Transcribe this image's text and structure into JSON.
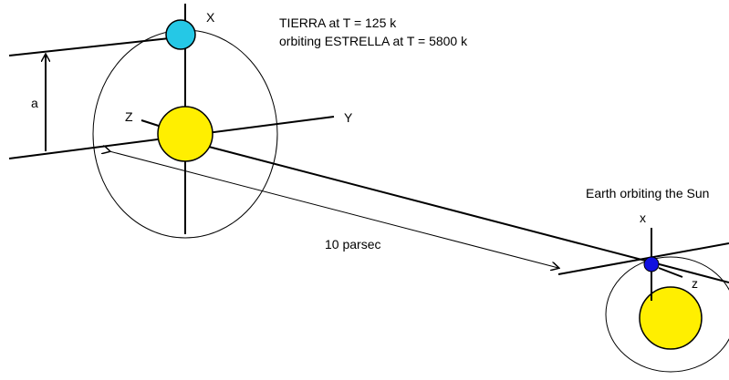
{
  "labels": {
    "x_axis": "X",
    "title_line1": "TIERRA at T = 125 k",
    "title_line2": "orbiting ESTRELLA at T = 5800 k",
    "a": "a",
    "z_axis": "Z",
    "y_axis": "Y",
    "distance": "10 parsec",
    "earth_caption": "Earth orbiting the Sun",
    "x_small": "x",
    "z_small": "z"
  }
}
